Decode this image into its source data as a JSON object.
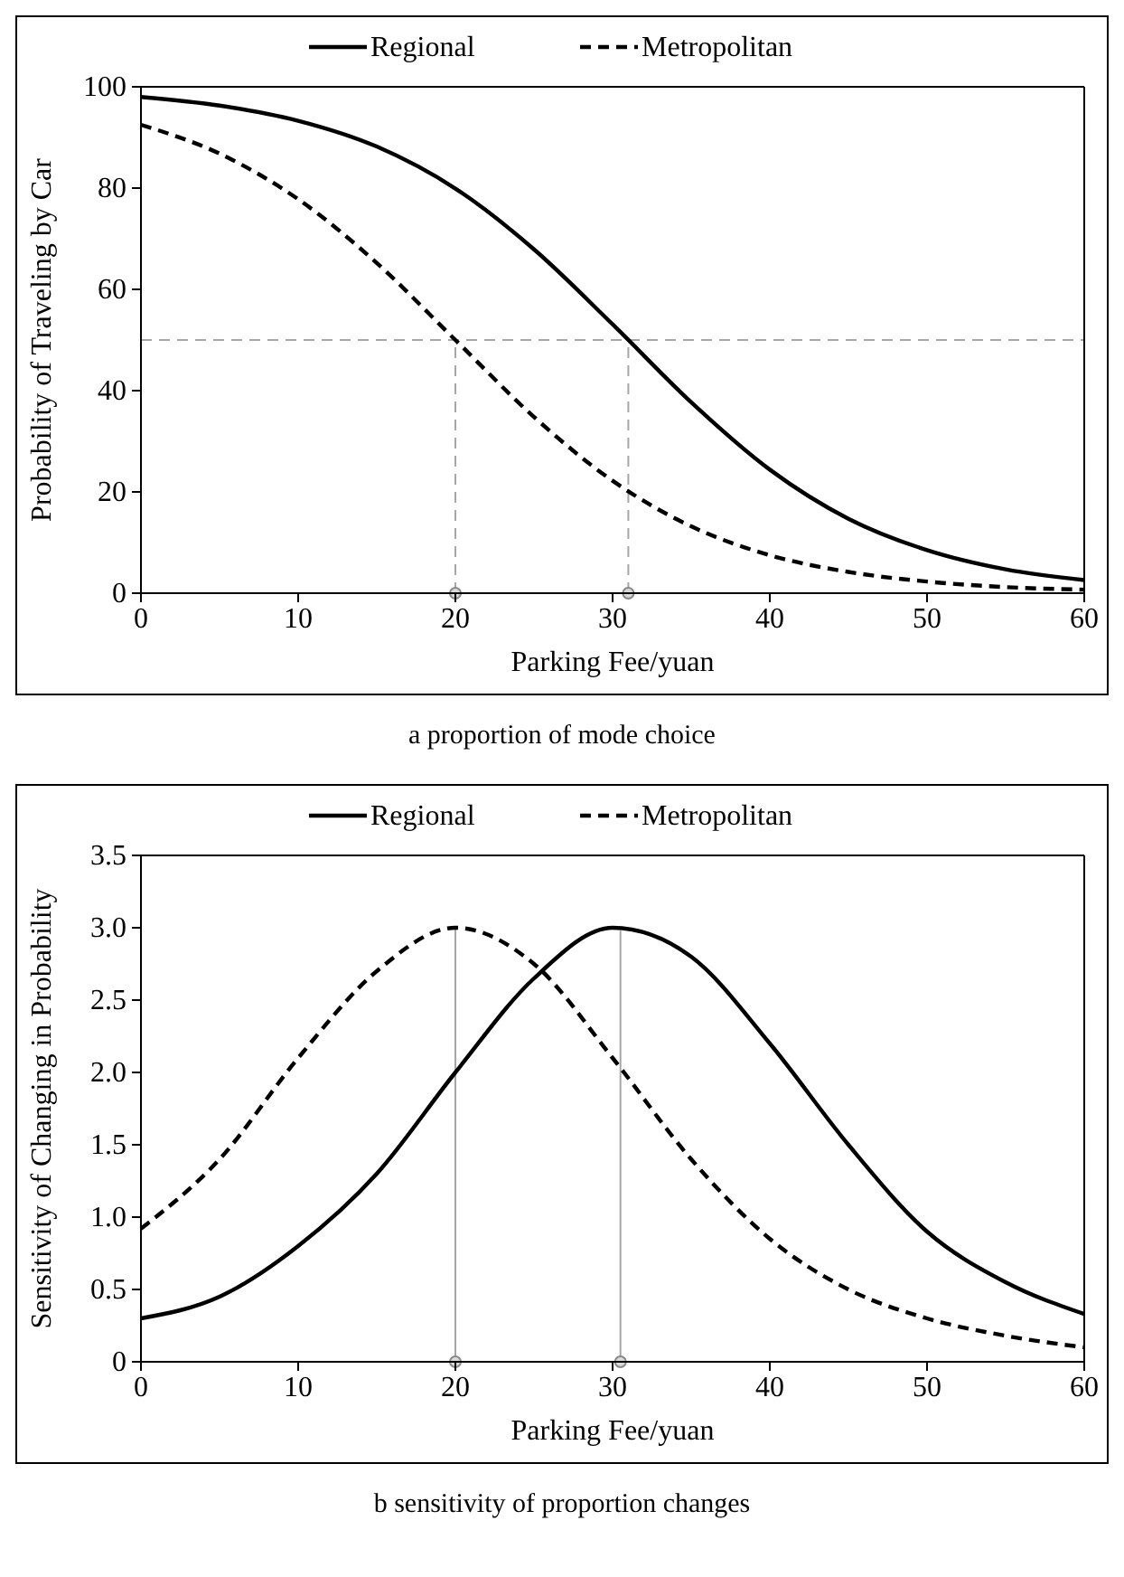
{
  "chart_data": [
    {
      "type": "line",
      "xlabel": "Parking Fee/yuan",
      "ylabel": "Probability of Traveling by Car",
      "annotations": [
        "a proportion of mode choice"
      ],
      "x": [
        0,
        5,
        10,
        15,
        20,
        25,
        30,
        35,
        40,
        45,
        50,
        55,
        60
      ],
      "xlim": [
        0,
        60
      ],
      "xticks": [
        0,
        10,
        20,
        30,
        40,
        50,
        60
      ],
      "ylim": [
        0,
        100
      ],
      "yticks": [
        0,
        20,
        40,
        60,
        80,
        100
      ],
      "legend": "top",
      "grid": false,
      "series": [
        {
          "name": "Regional",
          "color": "#000000",
          "line_style": "solid",
          "values": [
            98.0,
            96.3,
            93.3,
            88.2,
            79.9,
            67.9,
            53.1,
            37.7,
            24.4,
            14.7,
            8.5,
            4.7,
            2.6
          ]
        },
        {
          "name": "Metropolitan",
          "color": "#000000",
          "line_style": "dashed",
          "values": [
            92.5,
            86.8,
            77.8,
            65.2,
            50.0,
            34.8,
            22.2,
            13.2,
            7.5,
            4.2,
            2.3,
            1.2,
            0.7
          ]
        }
      ],
      "ref_lines": [
        {
          "axis": "y",
          "value": 50,
          "color": "#a6a6a6",
          "line_style": "dashed"
        },
        {
          "axis": "x",
          "value": 20,
          "color": "#a6a6a6",
          "line_style": "dashed"
        },
        {
          "axis": "x",
          "value": 31,
          "color": "#a6a6a6",
          "line_style": "dashed"
        }
      ]
    },
    {
      "type": "line",
      "xlabel": "Parking Fee/yuan",
      "ylabel": "Sensitivity of Changing in Probability",
      "annotations": [
        "b sensitivity of proportion changes"
      ],
      "x": [
        0,
        5,
        10,
        15,
        20,
        25,
        30,
        35,
        40,
        45,
        50,
        55,
        60
      ],
      "xlim": [
        0,
        60
      ],
      "xticks": [
        0,
        10,
        20,
        30,
        40,
        50,
        60
      ],
      "ylim": [
        0,
        3.5
      ],
      "yticks": [
        {
          "value": 0,
          "label": "0"
        },
        {
          "value": 0.5,
          "label": "0.5"
        },
        {
          "value": 1,
          "label": "1.0"
        },
        {
          "value": 1.5,
          "label": "1.5"
        },
        {
          "value": 2,
          "label": "2.0"
        },
        {
          "value": 2.5,
          "label": "2.5"
        },
        {
          "value": 3,
          "label": "3.0"
        },
        {
          "value": 3.5,
          "label": "3.5"
        }
      ],
      "legend": "top",
      "grid": false,
      "series": [
        {
          "name": "Regional",
          "color": "#000000",
          "line_style": "solid",
          "values": [
            0.3,
            0.45,
            0.8,
            1.3,
            2.0,
            2.65,
            3.0,
            2.8,
            2.2,
            1.5,
            0.9,
            0.55,
            0.33
          ]
        },
        {
          "name": "Metropolitan",
          "color": "#000000",
          "line_style": "dashed",
          "values": [
            0.92,
            1.4,
            2.1,
            2.7,
            3.0,
            2.75,
            2.1,
            1.4,
            0.85,
            0.5,
            0.3,
            0.18,
            0.1
          ]
        }
      ],
      "ref_lines": [
        {
          "axis": "x",
          "value": 20,
          "color": "#a6a6a6",
          "line_style": "solid"
        },
        {
          "axis": "x",
          "value": 30.5,
          "color": "#a6a6a6",
          "line_style": "solid"
        }
      ]
    }
  ]
}
